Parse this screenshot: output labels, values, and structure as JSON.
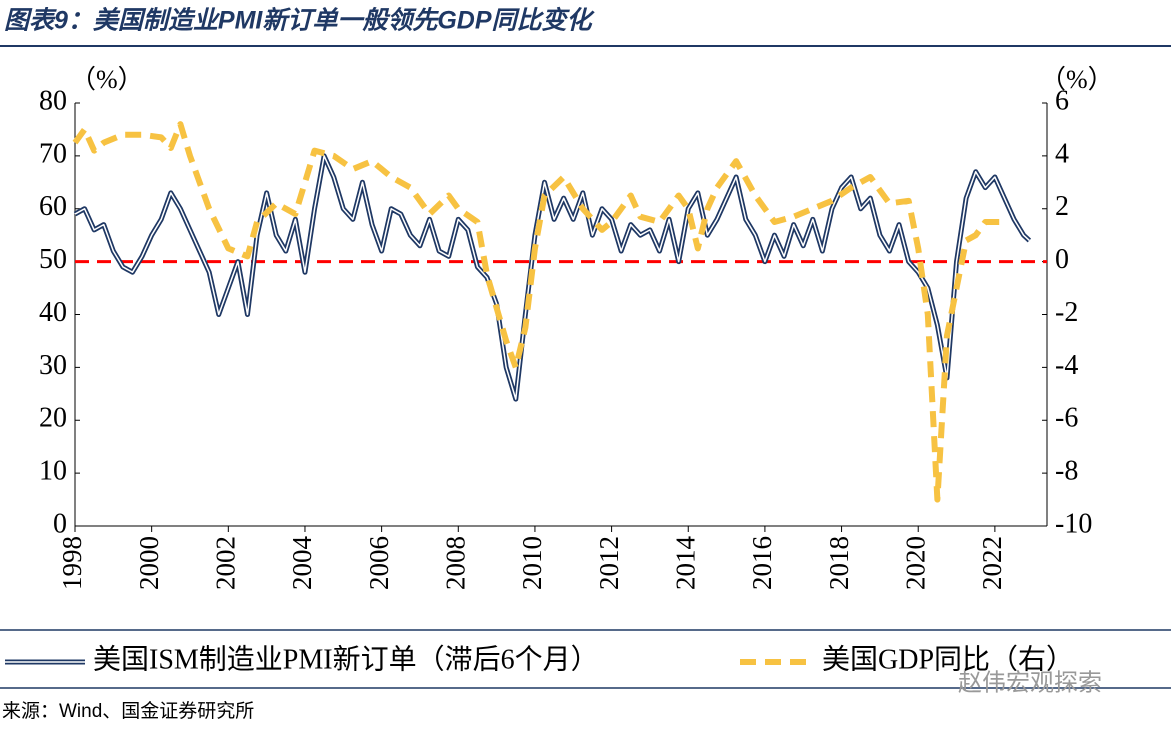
{
  "chart_data": {
    "type": "line",
    "title": "图表9：美国制造业PMI新订单一般领先GDP同比变化",
    "y_label": "（%）",
    "y2_label": "（%）",
    "source": "来源：Wind、国金证券研究所",
    "watermark": "赵伟宏观探索",
    "xlim": [
      1998,
      2023.36
    ],
    "xticks": [
      1998,
      2000,
      2002,
      2004,
      2006,
      2008,
      2010,
      2012,
      2014,
      2016,
      2018,
      2020,
      2022
    ],
    "ylim": [
      0,
      80
    ],
    "yticks": [
      0,
      10,
      20,
      30,
      40,
      50,
      60,
      70,
      80
    ],
    "y2lim": [
      -10,
      6
    ],
    "y2ticks": [
      -10,
      -8,
      -6,
      -4,
      -2,
      0,
      2,
      4,
      6
    ],
    "hline": {
      "value": 50,
      "color": "#ff0000"
    },
    "legend": "bottom",
    "series": [
      {
        "name": "美国ISM制造业PMI新订单（滞后6个月）",
        "color": "#1f3864",
        "style": "double",
        "x": [
          1998,
          1998.25,
          1998.5,
          1998.75,
          1999,
          1999.25,
          1999.5,
          1999.75,
          2000,
          2000.25,
          2000.5,
          2000.75,
          2001,
          2001.25,
          2001.5,
          2001.75,
          2002,
          2002.25,
          2002.5,
          2002.75,
          2003,
          2003.25,
          2003.5,
          2003.75,
          2004,
          2004.25,
          2004.5,
          2004.75,
          2005,
          2005.25,
          2005.5,
          2005.75,
          2006,
          2006.25,
          2006.5,
          2006.75,
          2007,
          2007.25,
          2007.5,
          2007.75,
          2008,
          2008.25,
          2008.5,
          2008.75,
          2009,
          2009.25,
          2009.5,
          2009.75,
          2010,
          2010.25,
          2010.5,
          2010.75,
          2011,
          2011.25,
          2011.5,
          2011.75,
          2012,
          2012.25,
          2012.5,
          2012.75,
          2013,
          2013.25,
          2013.5,
          2013.75,
          2014,
          2014.25,
          2014.5,
          2014.75,
          2015,
          2015.25,
          2015.5,
          2015.75,
          2016,
          2016.25,
          2016.5,
          2016.75,
          2017,
          2017.25,
          2017.5,
          2017.75,
          2018,
          2018.25,
          2018.5,
          2018.75,
          2019,
          2019.25,
          2019.5,
          2019.75,
          2020,
          2020.25,
          2020.5,
          2020.75,
          2021,
          2021.25,
          2021.5,
          2021.75,
          2022,
          2022.25,
          2022.5,
          2022.75,
          2022.9
        ],
        "values": [
          59,
          60,
          56,
          57,
          52,
          49,
          48,
          51,
          55,
          58,
          63,
          60,
          56,
          52,
          48,
          40,
          45,
          50,
          40,
          55,
          63,
          55,
          52,
          58,
          48,
          60,
          70,
          66,
          60,
          58,
          65,
          57,
          52,
          60,
          59,
          55,
          53,
          58,
          52,
          51,
          58,
          56,
          49,
          47,
          42,
          30,
          24,
          40,
          55,
          65,
          58,
          62,
          58,
          63,
          55,
          60,
          58,
          52,
          57,
          55,
          56,
          52,
          58,
          50,
          60,
          63,
          55,
          58,
          62,
          66,
          58,
          55,
          50,
          55,
          51,
          57,
          53,
          58,
          52,
          60,
          64,
          66,
          60,
          62,
          55,
          52,
          57,
          50,
          48,
          45,
          38,
          28,
          50,
          62,
          67,
          64,
          66,
          62,
          58,
          55,
          54
        ]
      },
      {
        "name": "美国GDP同比（右）",
        "color": "#f7c242",
        "style": "dashed",
        "axis": "y2",
        "x": [
          1998,
          1998.25,
          1998.5,
          1998.75,
          1999.25,
          1999.75,
          2000.25,
          2000.5,
          2000.75,
          2001,
          2001.5,
          2002,
          2002.5,
          2002.75,
          2003.25,
          2003.75,
          2004,
          2004.25,
          2004.75,
          2005.25,
          2005.75,
          2006.25,
          2006.75,
          2007.25,
          2007.75,
          2008,
          2008.5,
          2008.75,
          2009.25,
          2009.5,
          2009.75,
          2010,
          2010.25,
          2010.75,
          2011.25,
          2011.75,
          2012,
          2012.5,
          2012.75,
          2013.25,
          2013.75,
          2014,
          2014.25,
          2014.5,
          2014.75,
          2015.25,
          2015.75,
          2016.25,
          2016.75,
          2017.25,
          2017.75,
          2018.25,
          2018.75,
          2019.25,
          2019.75,
          2020,
          2020.25,
          2020.5,
          2020.75,
          2021,
          2021.25,
          2021.5,
          2021.75,
          2022.25
        ],
        "values": [
          4.5,
          5,
          4.2,
          4.5,
          4.8,
          4.8,
          4.7,
          4.3,
          5.2,
          4,
          2,
          0.5,
          0.2,
          1.5,
          2.2,
          1.8,
          3,
          4.2,
          4,
          3.5,
          3.8,
          3.2,
          2.8,
          1.8,
          2.5,
          2,
          1.5,
          -0.5,
          -3,
          -4,
          -2.5,
          0.5,
          2.5,
          3.2,
          2,
          1.2,
          1.5,
          2.5,
          1.7,
          1.5,
          2.5,
          2,
          0.5,
          2,
          2.8,
          3.8,
          2.5,
          1.5,
          1.7,
          2,
          2.3,
          2.8,
          3.2,
          2.2,
          2.3,
          0.5,
          -2,
          -9,
          -2.8,
          -1,
          0.8,
          1,
          1.5,
          1.5
        ]
      }
    ]
  }
}
